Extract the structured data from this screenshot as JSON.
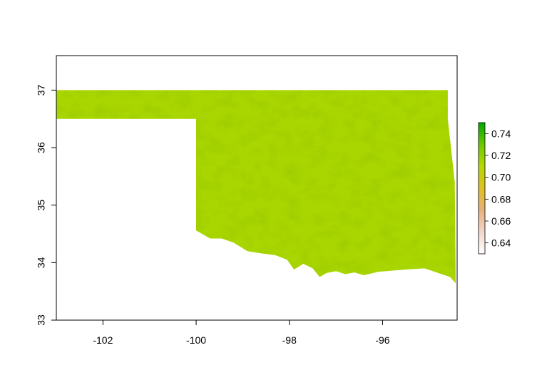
{
  "chart_data": {
    "type": "heatmap",
    "title": "",
    "xlabel": "",
    "ylabel": "",
    "xlim": [
      -103.0,
      -94.4
    ],
    "ylim": [
      33.0,
      37.6
    ],
    "x_ticks": [
      -102,
      -100,
      -98,
      -96
    ],
    "x_tick_labels": [
      "-102",
      "-100",
      "-98",
      "-96"
    ],
    "y_ticks": [
      33,
      34,
      35,
      36,
      37
    ],
    "y_tick_labels": [
      "33",
      "34",
      "35",
      "36",
      "37"
    ],
    "raster_value_range": [
      0.63,
      0.75
    ],
    "raster_dominant_value": 0.71,
    "region": "Oklahoma",
    "region_outline": [
      [
        -103.0,
        37.0
      ],
      [
        -94.6,
        37.0
      ],
      [
        -94.6,
        36.5
      ],
      [
        -94.45,
        35.4
      ],
      [
        -94.43,
        33.64
      ],
      [
        -94.55,
        33.75
      ],
      [
        -95.1,
        33.9
      ],
      [
        -95.5,
        33.88
      ],
      [
        -95.8,
        33.86
      ],
      [
        -96.1,
        33.84
      ],
      [
        -96.4,
        33.78
      ],
      [
        -96.6,
        33.83
      ],
      [
        -96.8,
        33.8
      ],
      [
        -97.0,
        33.85
      ],
      [
        -97.2,
        33.82
      ],
      [
        -97.35,
        33.75
      ],
      [
        -97.5,
        33.9
      ],
      [
        -97.7,
        33.98
      ],
      [
        -97.9,
        33.88
      ],
      [
        -98.05,
        34.05
      ],
      [
        -98.3,
        34.13
      ],
      [
        -98.6,
        34.16
      ],
      [
        -98.9,
        34.2
      ],
      [
        -99.2,
        34.35
      ],
      [
        -99.45,
        34.42
      ],
      [
        -99.7,
        34.42
      ],
      [
        -100.0,
        34.56
      ],
      [
        -100.0,
        36.5
      ],
      [
        -103.0,
        36.5
      ]
    ],
    "colorbar": {
      "ticks": [
        0.64,
        0.66,
        0.68,
        0.7,
        0.72,
        0.74
      ],
      "tick_labels": [
        "0.64",
        "0.66",
        "0.68",
        "0.70",
        "0.72",
        "0.74"
      ],
      "range": [
        0.63,
        0.75
      ],
      "colors": [
        "#ffffff",
        "#f3d6c9",
        "#e8b07c",
        "#dcc023",
        "#b7d900",
        "#6cc800",
        "#00a600"
      ]
    },
    "grid": false,
    "legend_placement": "right"
  }
}
